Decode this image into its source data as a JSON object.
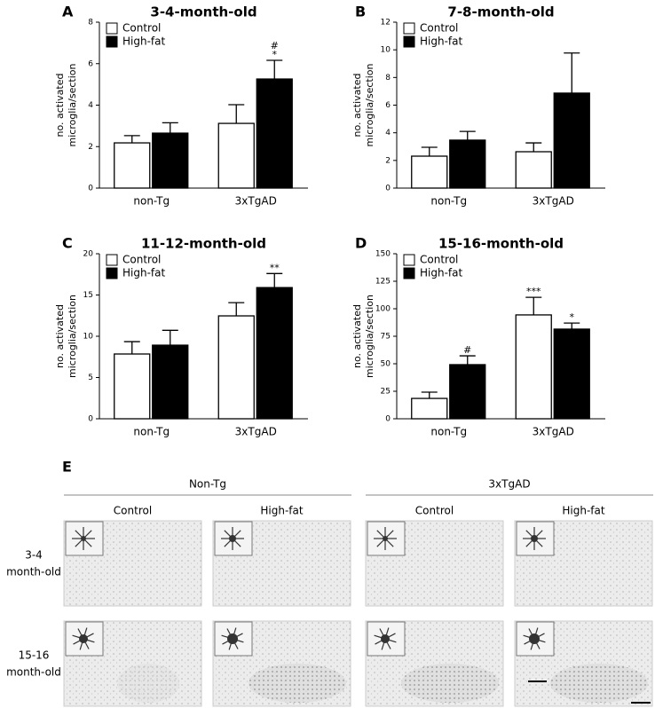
{
  "chart_data": [
    {
      "type": "bar",
      "panel": "A",
      "title": "3-4-month-old",
      "ylabel": [
        "no. activated",
        "microglia/section"
      ],
      "categories": [
        "non-Tg",
        "3xTgAD"
      ],
      "ylim": [
        0,
        8
      ],
      "yticks": [
        0,
        2,
        4,
        6,
        8
      ],
      "series": [
        {
          "name": "Control",
          "color": "#ffffff",
          "values": [
            2.18,
            3.12
          ],
          "errors": [
            0.35,
            0.9
          ],
          "annotations": [
            null,
            null
          ]
        },
        {
          "name": "High-fat",
          "color": "#000000",
          "values": [
            2.65,
            5.26
          ],
          "errors": [
            0.5,
            0.9
          ],
          "annotations": [
            null,
            [
              "#",
              "*"
            ]
          ]
        }
      ]
    },
    {
      "type": "bar",
      "panel": "B",
      "title": "7-8-month-old",
      "ylabel": [
        "no. activated",
        "microglia/section"
      ],
      "categories": [
        "non-Tg",
        "3xTgAD"
      ],
      "ylim": [
        0,
        12
      ],
      "yticks": [
        0,
        2,
        4,
        6,
        8,
        10,
        12
      ],
      "series": [
        {
          "name": "Control",
          "color": "#ffffff",
          "values": [
            2.31,
            2.63
          ],
          "errors": [
            0.64,
            0.64
          ],
          "annotations": [
            null,
            null
          ]
        },
        {
          "name": "High-fat",
          "color": "#000000",
          "values": [
            3.47,
            6.87
          ],
          "errors": [
            0.63,
            2.9
          ],
          "annotations": [
            null,
            null
          ]
        }
      ]
    },
    {
      "type": "bar",
      "panel": "C",
      "title": "11-12-month-old",
      "ylabel": [
        "no. activated",
        "microglia/section"
      ],
      "categories": [
        "non-Tg",
        "3xTgAD"
      ],
      "ylim": [
        0,
        20
      ],
      "yticks": [
        0,
        5,
        10,
        15,
        20
      ],
      "series": [
        {
          "name": "Control",
          "color": "#ffffff",
          "values": [
            7.85,
            12.47
          ],
          "errors": [
            1.5,
            1.6
          ],
          "annotations": [
            null,
            null
          ]
        },
        {
          "name": "High-fat",
          "color": "#000000",
          "values": [
            8.92,
            15.9
          ],
          "errors": [
            1.8,
            1.7
          ],
          "annotations": [
            null,
            [
              "**"
            ]
          ]
        }
      ]
    },
    {
      "type": "bar",
      "panel": "D",
      "title": "15-16-month-old",
      "ylabel": [
        "no. activated",
        "microglia/section"
      ],
      "categories": [
        "non-Tg",
        "3xTgAD"
      ],
      "ylim": [
        0,
        150
      ],
      "yticks": [
        0,
        25,
        50,
        75,
        100,
        125,
        150
      ],
      "series": [
        {
          "name": "Control",
          "color": "#ffffff",
          "values": [
            18.5,
            94.4
          ],
          "errors": [
            5.7,
            16
          ],
          "annotations": [
            null,
            [
              "***"
            ]
          ]
        },
        {
          "name": "High-fat",
          "color": "#000000",
          "values": [
            49.2,
            81.5
          ],
          "errors": [
            8,
            5.5
          ],
          "annotations": [
            [
              "#"
            ],
            [
              "*"
            ]
          ]
        }
      ]
    }
  ],
  "panel_e": {
    "label": "E",
    "groups": [
      "Non-Tg",
      "3xTgAD"
    ],
    "columns": [
      "Control",
      "High-fat",
      "Control",
      "High-fat"
    ],
    "rows": [
      [
        "3-4",
        "month-old"
      ],
      [
        "15-16",
        "month-old"
      ]
    ]
  }
}
